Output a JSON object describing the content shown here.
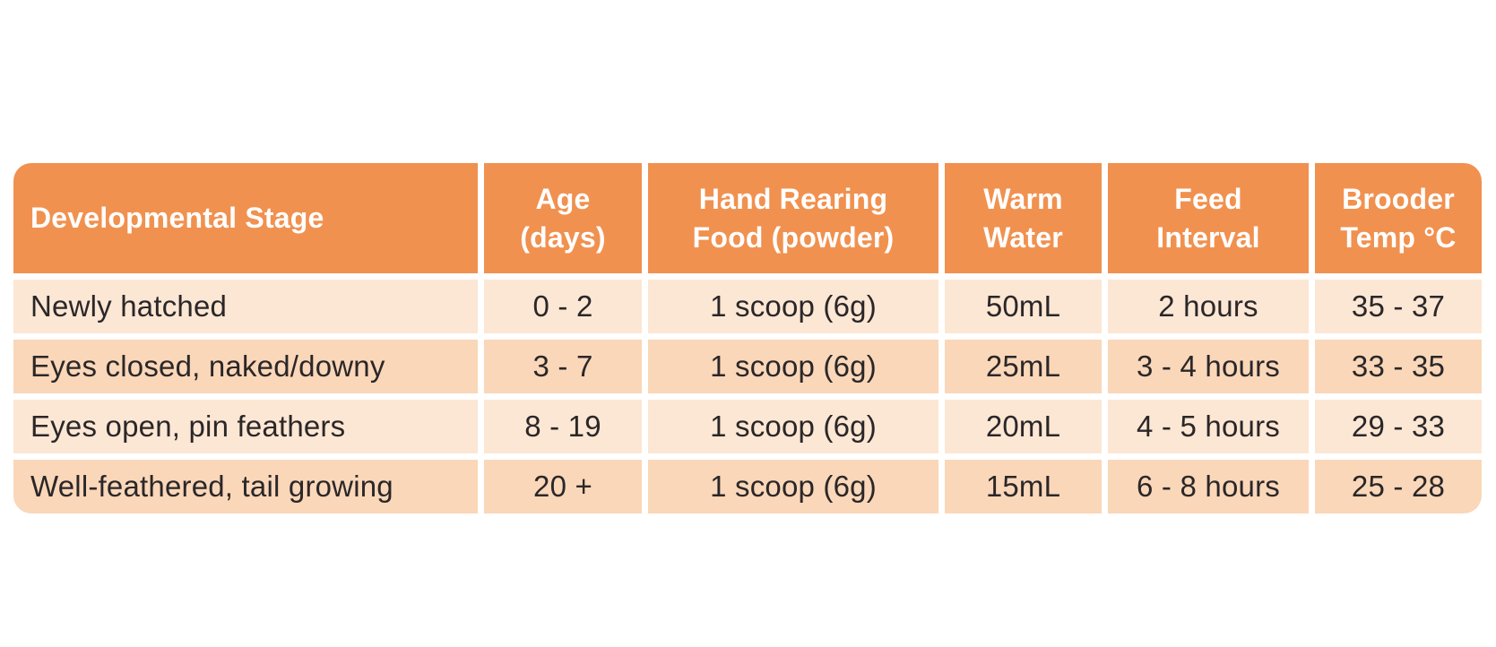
{
  "colors": {
    "header_bg": "#F1914F",
    "row_light": "#FCE7D4",
    "row_dark": "#FAD7B9",
    "header_text": "#FFFFFF",
    "body_text": "#2B2728",
    "page_bg": "#FFFFFF"
  },
  "table": {
    "columns": [
      {
        "id": "stage",
        "label": "Developmental Stage"
      },
      {
        "id": "age",
        "label": "Age\n(days)"
      },
      {
        "id": "food",
        "label": "Hand Rearing\nFood (powder)"
      },
      {
        "id": "water",
        "label": "Warm\nWater"
      },
      {
        "id": "interval",
        "label": "Feed\nInterval"
      },
      {
        "id": "temp",
        "label": "Brooder\nTemp °C"
      }
    ],
    "rows": [
      {
        "stage": "Newly hatched",
        "age": "0 - 2",
        "food": "1 scoop (6g)",
        "water": "50mL",
        "interval": "2 hours",
        "temp": "35 - 37"
      },
      {
        "stage": "Eyes closed, naked/downy",
        "age": "3 - 7",
        "food": "1 scoop (6g)",
        "water": "25mL",
        "interval": "3 - 4 hours",
        "temp": "33 - 35"
      },
      {
        "stage": "Eyes open, pin feathers",
        "age": "8 - 19",
        "food": "1 scoop (6g)",
        "water": "20mL",
        "interval": "4 - 5 hours",
        "temp": "29 - 33"
      },
      {
        "stage": "Well-feathered, tail growing",
        "age": "20 +",
        "food": "1 scoop (6g)",
        "water": "15mL",
        "interval": "6 - 8 hours",
        "temp": "25 - 28"
      }
    ]
  },
  "chart_data": {
    "type": "table",
    "title": "",
    "columns": [
      "Developmental Stage",
      "Age (days)",
      "Hand Rearing Food (powder)",
      "Warm Water",
      "Feed Interval",
      "Brooder Temp °C"
    ],
    "rows": [
      [
        "Newly hatched",
        "0 - 2",
        "1 scoop (6g)",
        "50mL",
        "2 hours",
        "35 - 37"
      ],
      [
        "Eyes closed, naked/downy",
        "3 - 7",
        "1 scoop (6g)",
        "25mL",
        "3 - 4 hours",
        "33 - 35"
      ],
      [
        "Eyes open, pin feathers",
        "8 - 19",
        "1 scoop (6g)",
        "20mL",
        "4 - 5 hours",
        "29 - 33"
      ],
      [
        "Well-feathered, tail growing",
        "20 +",
        "1 scoop (6g)",
        "15mL",
        "6 - 8 hours",
        "25 - 28"
      ]
    ],
    "layout_hints": {
      "header_row": true,
      "row_striping": [
        "light",
        "dark",
        "light",
        "dark"
      ],
      "first_column_align": "left",
      "other_columns_align": "center",
      "rounded_outer_corners": true
    }
  }
}
